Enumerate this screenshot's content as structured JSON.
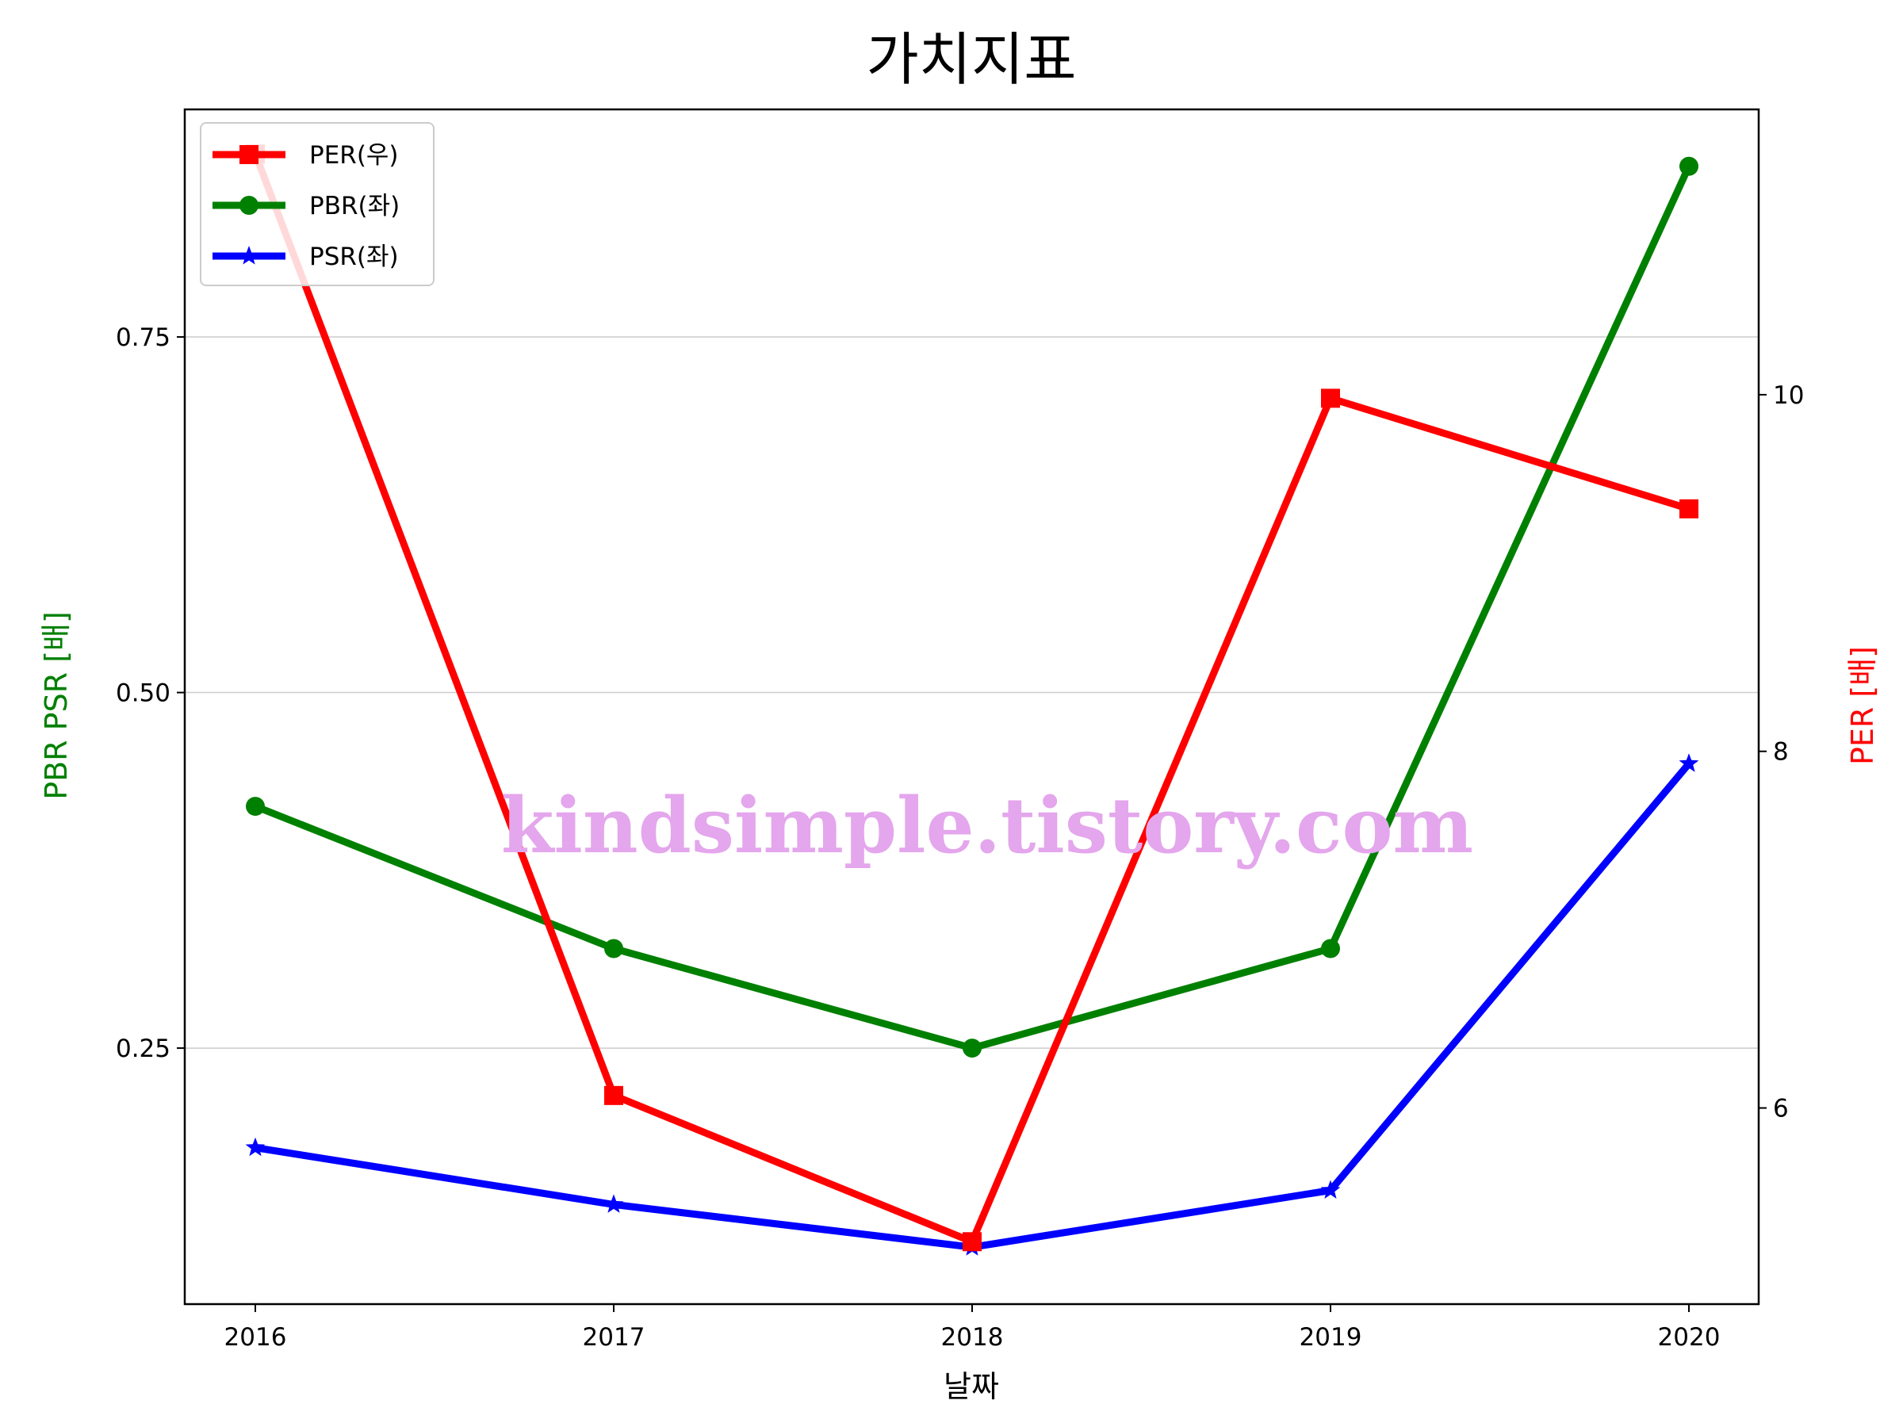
{
  "chart_data": {
    "type": "line",
    "title": "가치지표",
    "xlabel": "날짜",
    "ylabel_left": "PBR PSR [배]",
    "ylabel_right": "PER [배]",
    "categories": [
      "2016",
      "2017",
      "2018",
      "2019",
      "2020"
    ],
    "ylim_left": [
      0.07,
      0.91
    ],
    "yticks_left": [
      0.25,
      0.5,
      0.75
    ],
    "yticks_left_labels": [
      "0.25",
      "0.50",
      "0.75"
    ],
    "ylim_right": [
      4.9,
      11.6
    ],
    "yticks_right": [
      6,
      8,
      10
    ],
    "yticks_right_labels": [
      "6",
      "8",
      "10"
    ],
    "grid": "horizontal",
    "legend_position": "top-left",
    "series": [
      {
        "name": "PER(우)",
        "axis": "right",
        "color": "#ff0000",
        "marker": "square",
        "values": [
          11.35,
          6.07,
          5.25,
          9.98,
          9.36
        ]
      },
      {
        "name": "PBR(좌)",
        "axis": "left",
        "color": "#008000",
        "marker": "circle",
        "values": [
          0.42,
          0.32,
          0.25,
          0.32,
          0.87
        ]
      },
      {
        "name": "PSR(좌)",
        "axis": "left",
        "color": "#0000ff",
        "marker": "star",
        "values": [
          0.18,
          0.14,
          0.11,
          0.15,
          0.45
        ]
      }
    ],
    "ylabel_left_color": "#008000",
    "ylabel_right_color": "#ff0000"
  },
  "watermark": "kindsimple.tistory.com"
}
